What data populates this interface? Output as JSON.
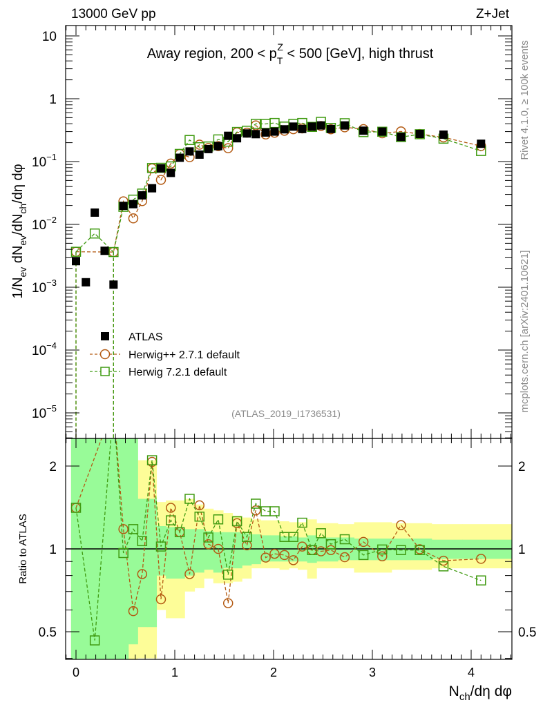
{
  "header": {
    "left": "13000 GeV pp",
    "right": "Z+Jet"
  },
  "side_text": {
    "top": "Rivet 4.1.0, ≥ 100k events",
    "bottom": "mcplots.cern.ch [arXiv:2401.10621]"
  },
  "analysis_id": "(ATLAS_2019_I1736531)",
  "title": {
    "pre": "Away region, 200 < p",
    "sub": "T",
    "sup": "Z",
    "post": " < 500 [GeV], high thrust"
  },
  "ylabel": {
    "a": "1/N",
    "a_sub": "ev",
    "b": " dN",
    "b_sub": "ev",
    "c": "/dN",
    "c_sub": "ch",
    "d": "/dη dφ"
  },
  "ratio_ylabel": "Ratio to ATLAS",
  "xlabel": {
    "a": "N",
    "a_sub": "ch",
    "b": "/dη dφ"
  },
  "legend": [
    "ATLAS",
    "Herwig++ 2.7.1 default",
    "Herwig 7.2.1 default"
  ],
  "colors": {
    "atlas": "#000000",
    "hpp": "#b35a12",
    "h7": "#3f9a10",
    "band_yellow": "#fdfd98",
    "band_green": "#98fb98"
  },
  "chart_data": {
    "type": "scatter",
    "xlabel": "N_ch/dη dφ",
    "ylabel": "1/N_ev dN_ev/dN_ch/dη dφ",
    "yscale": "log",
    "xlim": [
      -0.1,
      4.41
    ],
    "ylim": [
      6.8e-06,
      14.6
    ],
    "ratio_ylim": [
      0.4,
      2.52
    ],
    "x_ticks": [
      "0",
      "1",
      "2",
      "3",
      "4"
    ],
    "y_ticks": [
      {
        "base": "10",
        "exp": ""
      },
      {
        "base": "1",
        "exp": ""
      },
      {
        "base": "10",
        "exp": "−1"
      },
      {
        "base": "10",
        "exp": "−2"
      },
      {
        "base": "10",
        "exp": "−3"
      },
      {
        "base": "10",
        "exp": "−4"
      },
      {
        "base": "10",
        "exp": "−5"
      }
    ],
    "ratio_ticks": [
      "2",
      "1",
      "0.5"
    ],
    "x": [
      0,
      0.1,
      0.19,
      0.29,
      0.38,
      0.48,
      0.58,
      0.67,
      0.77,
      0.86,
      0.96,
      1.05,
      1.15,
      1.25,
      1.34,
      1.44,
      1.54,
      1.63,
      1.73,
      1.82,
      1.92,
      2.01,
      2.11,
      2.2,
      2.29,
      2.39,
      2.48,
      2.58,
      2.72,
      2.91,
      3.1,
      3.29,
      3.48,
      3.72,
      4.1
    ],
    "series": [
      {
        "name": "ATLAS",
        "values": [
          0.0026,
          0.0012,
          0.0154,
          0.0038,
          0.0011,
          0.0197,
          0.021,
          0.029,
          0.0376,
          0.078,
          0.066,
          0.115,
          0.145,
          0.129,
          0.158,
          0.176,
          0.257,
          0.235,
          0.28,
          0.273,
          0.29,
          0.3,
          0.326,
          0.36,
          0.33,
          0.36,
          0.376,
          0.33,
          0.376,
          0.31,
          0.3,
          0.247,
          0.275,
          0.268,
          0.192
        ]
      },
      {
        "name": "Herwig++ 2.7.1 default",
        "ratio": [
          1.41,
          null,
          null,
          null,
          3.3,
          1.18,
          0.594,
          0.81,
          2.07,
          0.656,
          1.41,
          1.15,
          0.81,
          1.44,
          1.04,
          1.0,
          0.635,
          1.24,
          1.03,
          1.38,
          0.93,
          0.96,
          0.95,
          0.91,
          1.02,
          0.99,
          0.98,
          0.99,
          0.933,
          1.06,
          0.94,
          1.22,
          0.997,
          0.906,
          0.92
        ]
      },
      {
        "name": "Herwig 7.2.1 default",
        "ratio": [
          1.41,
          null,
          0.465,
          null,
          3.3,
          0.966,
          1.18,
          1.067,
          2.1,
          1.02,
          1.27,
          1.15,
          1.52,
          1.31,
          1.1,
          1.28,
          0.806,
          1.26,
          1.105,
          1.46,
          1.37,
          1.37,
          1.105,
          1.105,
          1.245,
          0.99,
          1.14,
          1.04,
          1.084,
          0.95,
          0.995,
          0.99,
          0.99,
          0.864,
          0.768
        ]
      }
    ],
    "band_yellow": [
      [
        0.3,
        3
      ],
      [
        0.3,
        3
      ],
      [
        0.3,
        3
      ],
      [
        0.3,
        3
      ],
      [
        0.3,
        3
      ],
      [
        0.3,
        3
      ],
      [
        0.3,
        3
      ],
      [
        0.4,
        2.1
      ],
      [
        0.4,
        2.1
      ],
      [
        0.6,
        1.48
      ],
      [
        0.56,
        1.5
      ],
      [
        0.56,
        1.5
      ],
      [
        0.7,
        1.52
      ],
      [
        0.72,
        1.45
      ],
      [
        0.78,
        1.4
      ],
      [
        0.75,
        1.38
      ],
      [
        0.75,
        1.35
      ],
      [
        0.76,
        1.32
      ],
      [
        0.78,
        1.3
      ],
      [
        0.85,
        1.28
      ],
      [
        0.85,
        1.27
      ],
      [
        0.85,
        1.27
      ],
      [
        0.84,
        1.26
      ],
      [
        0.85,
        1.25
      ],
      [
        0.84,
        1.25
      ],
      [
        0.78,
        1.28
      ],
      [
        0.85,
        1.24
      ],
      [
        0.85,
        1.24
      ],
      [
        0.85,
        1.23
      ],
      [
        0.82,
        1.25
      ],
      [
        0.82,
        1.25
      ],
      [
        0.84,
        1.24
      ],
      [
        0.84,
        1.24
      ],
      [
        0.85,
        1.23
      ],
      [
        0.85,
        1.23
      ]
    ],
    "band_green": [
      [
        0.3,
        3
      ],
      [
        0.3,
        3
      ],
      [
        0.3,
        3
      ],
      [
        0.3,
        3
      ],
      [
        0.3,
        3
      ],
      [
        0.3,
        3
      ],
      [
        0.45,
        3
      ],
      [
        0.52,
        1.52
      ],
      [
        0.52,
        1.52
      ],
      [
        0.8,
        1.21
      ],
      [
        0.78,
        1.2
      ],
      [
        0.78,
        1.2
      ],
      [
        0.8,
        1.18
      ],
      [
        0.82,
        1.18
      ],
      [
        0.84,
        1.16
      ],
      [
        0.82,
        1.15
      ],
      [
        0.85,
        1.15
      ],
      [
        0.85,
        1.15
      ],
      [
        0.87,
        1.14
      ],
      [
        0.88,
        1.13
      ],
      [
        0.9,
        1.12
      ],
      [
        0.9,
        1.12
      ],
      [
        0.9,
        1.11
      ],
      [
        0.9,
        1.11
      ],
      [
        0.9,
        1.1
      ],
      [
        0.89,
        1.12
      ],
      [
        0.9,
        1.1
      ],
      [
        0.9,
        1.1
      ],
      [
        0.91,
        1.1
      ],
      [
        0.91,
        1.09
      ],
      [
        0.91,
        1.09
      ],
      [
        0.91,
        1.09
      ],
      [
        0.91,
        1.09
      ],
      [
        0.92,
        1.08
      ],
      [
        0.92,
        1.08
      ]
    ]
  }
}
